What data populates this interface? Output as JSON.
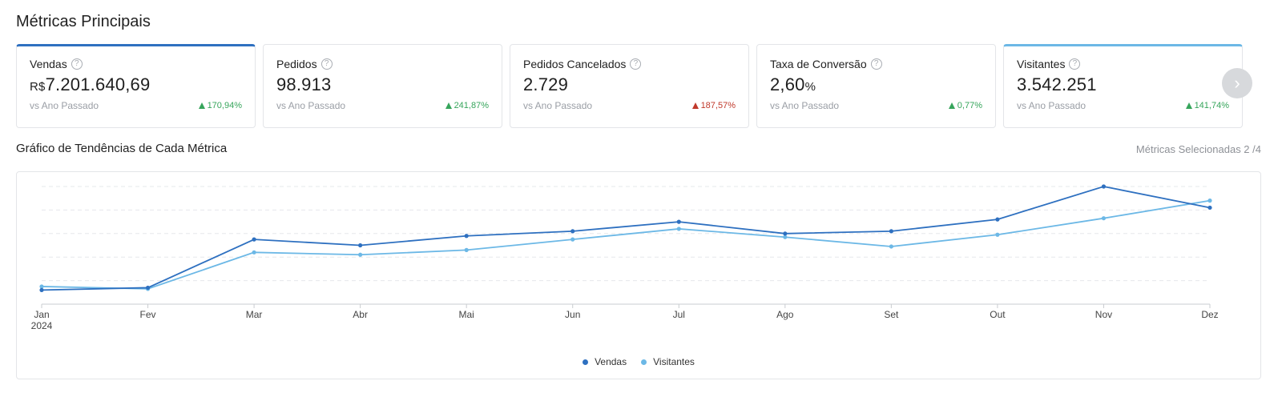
{
  "page": {
    "title": "Métricas Principais"
  },
  "cards": [
    {
      "label": "Vendas",
      "prefix": "R$",
      "value": "7.201.640,69",
      "suffix": "",
      "compare": "vs Ano Passado",
      "change": "170,94%",
      "trend": "up-good",
      "selected": "dark"
    },
    {
      "label": "Pedidos",
      "prefix": "",
      "value": "98.913",
      "suffix": "",
      "compare": "vs Ano Passado",
      "change": "241,87%",
      "trend": "up-good",
      "selected": ""
    },
    {
      "label": "Pedidos Cancelados",
      "prefix": "",
      "value": "2.729",
      "suffix": "",
      "compare": "vs Ano Passado",
      "change": "187,57%",
      "trend": "up-bad",
      "selected": ""
    },
    {
      "label": "Taxa de Conversão",
      "prefix": "",
      "value": "2,60",
      "suffix": "%",
      "compare": "vs Ano Passado",
      "change": "0,77%",
      "trend": "up-good",
      "selected": ""
    },
    {
      "label": "Visitantes",
      "prefix": "",
      "value": "3.542.251",
      "suffix": "",
      "compare": "vs Ano Passado",
      "change": "141,74%",
      "trend": "up-good",
      "selected": "light"
    }
  ],
  "icons": {
    "help": "question-circle-icon",
    "next": "chevron-right-icon",
    "trend_up": "triangle-up-icon"
  },
  "chart_section": {
    "title": "Gráfico de Tendências de Cada Métrica",
    "selected_metrics": "Métricas Selecionadas 2 /4"
  },
  "colors": {
    "vendas": "#2e70c0",
    "visitantes": "#6cb8e6",
    "positive": "#36a55b",
    "negative": "#c0392b"
  },
  "chart_data": {
    "type": "line",
    "categories": [
      "Jan",
      "Fev",
      "Mar",
      "Abr",
      "Mai",
      "Jun",
      "Jul",
      "Ago",
      "Set",
      "Out",
      "Nov",
      "Dez"
    ],
    "year_label": "2024",
    "ylim": [
      0,
      100
    ],
    "grid": true,
    "legend_position": "bottom-center",
    "series": [
      {
        "name": "Vendas",
        "color": "#2e70c0",
        "values": [
          12,
          14,
          55,
          50,
          58,
          62,
          70,
          60,
          62,
          72,
          100,
          82
        ]
      },
      {
        "name": "Visitantes",
        "color": "#6cb8e6",
        "values": [
          15,
          13,
          44,
          42,
          46,
          55,
          64,
          57,
          49,
          59,
          73,
          88
        ]
      }
    ]
  }
}
